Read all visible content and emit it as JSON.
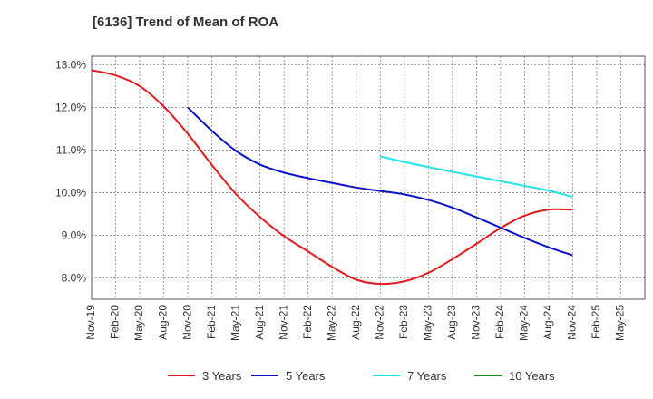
{
  "chart_data": {
    "type": "line",
    "title": "[6136]  Trend of Mean of ROA",
    "xlabel": "",
    "ylabel": "",
    "ylim": [
      7.5,
      13.2
    ],
    "y_ticks": [
      8.0,
      9.0,
      10.0,
      11.0,
      12.0,
      13.0
    ],
    "y_tick_labels": [
      "8.0%",
      "9.0%",
      "10.0%",
      "11.0%",
      "12.0%",
      "13.0%"
    ],
    "x_tick_labels": [
      "Nov-19",
      "Feb-20",
      "May-20",
      "Aug-20",
      "Nov-20",
      "Feb-21",
      "May-21",
      "Aug-21",
      "Nov-21",
      "Feb-22",
      "May-22",
      "Aug-22",
      "Nov-22",
      "Feb-23",
      "May-23",
      "Aug-23",
      "Nov-23",
      "Feb-24",
      "May-24",
      "Aug-24",
      "Nov-24",
      "Feb-25",
      "May-25"
    ],
    "grid": true,
    "legend_position": "bottom",
    "series": [
      {
        "name": "3 Years",
        "color": "#e31a1c",
        "start_index": 0,
        "values": [
          12.87,
          12.75,
          12.5,
          12.02,
          11.38,
          10.65,
          9.97,
          9.43,
          8.98,
          8.62,
          8.26,
          7.96,
          7.86,
          7.92,
          8.12,
          8.44,
          8.8,
          9.17,
          9.46,
          9.6,
          9.6
        ]
      },
      {
        "name": "5 Years",
        "color": "#0a14c8",
        "start_index": 4,
        "values": [
          12.0,
          11.45,
          10.98,
          10.66,
          10.47,
          10.34,
          10.23,
          10.12,
          10.04,
          9.96,
          9.83,
          9.65,
          9.42,
          9.18,
          8.94,
          8.72,
          8.53
        ]
      },
      {
        "name": "7 Years",
        "color": "#22e3e8",
        "start_index": 12,
        "values": [
          10.85,
          10.72,
          10.6,
          10.49,
          10.38,
          10.27,
          10.16,
          10.05,
          9.9
        ]
      },
      {
        "name": "10 Years",
        "color": "#1a8a1a",
        "start_index": 0,
        "values": []
      }
    ]
  }
}
